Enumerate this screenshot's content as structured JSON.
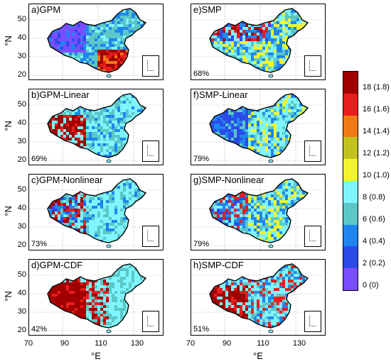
{
  "panels": [
    {
      "title": "a)GPM",
      "pct": "",
      "theme": "gpm"
    },
    {
      "title": "b)GPM-Linear",
      "pct": "69%",
      "theme": "red-west"
    },
    {
      "title": "c)GPM-Nonlinear",
      "pct": "73%",
      "theme": "mixed"
    },
    {
      "title": "d)GPM-CDF",
      "pct": "42%",
      "theme": "strong-red"
    },
    {
      "title": "e)SMP",
      "pct": "68%",
      "theme": "smp"
    },
    {
      "title": "f)SMP-Linear",
      "pct": "79%",
      "theme": "blue-west"
    },
    {
      "title": "g)SMP-Nonlinear",
      "pct": "79%",
      "theme": "mixed2"
    },
    {
      "title": "h)SMP-CDF",
      "pct": "51%",
      "theme": "red-mid"
    }
  ],
  "axes": {
    "y_ticks": [
      "50",
      "40",
      "30",
      "20"
    ],
    "x_ticks": [
      "70",
      "90",
      "110",
      "130"
    ],
    "y_label": "°N",
    "x_label": "°E"
  },
  "colorbar": {
    "colors": [
      "#7b4dff",
      "#2b4be8",
      "#1f86f0",
      "#5cc7c7",
      "#7ff5ff",
      "#f2f52b",
      "#c2c21f",
      "#f07a16",
      "#e81d1d",
      "#a00000"
    ],
    "labels": [
      "0 (0)",
      "2 (0.2)",
      "4 (0.4)",
      "6 (0.6)",
      "8 (0.8)",
      "10 (1.0)",
      "12 (1.2)",
      "14 (1.4)",
      "16 (1.6)",
      "18 (1.8)"
    ]
  }
}
